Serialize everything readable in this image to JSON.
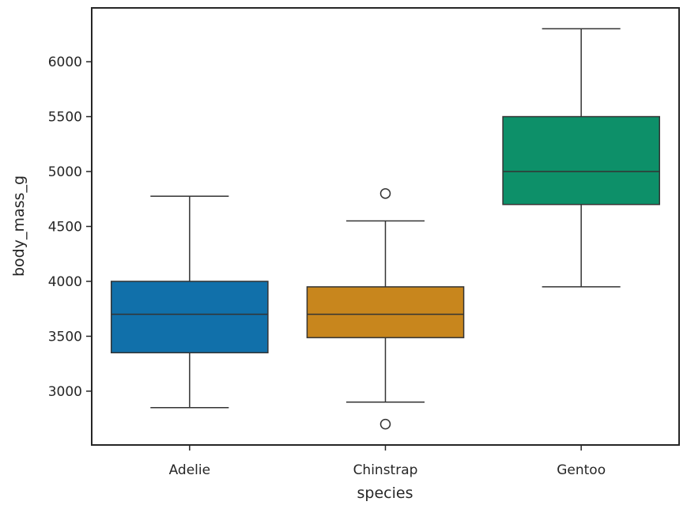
{
  "chart_data": {
    "type": "box",
    "xlabel": "species",
    "ylabel": "body_mass_g",
    "categories": [
      "Adelie",
      "Chinstrap",
      "Gentoo"
    ],
    "ylim": [
      2510,
      6490
    ],
    "yticks": [
      3000,
      3500,
      4000,
      4500,
      5000,
      5500,
      6000
    ],
    "grid": false,
    "series": [
      {
        "category": "Adelie",
        "color": "#1170aa",
        "whisker_low": 2850,
        "q1": 3350,
        "median": 3700,
        "q3": 4000,
        "whisker_high": 4775,
        "outliers": []
      },
      {
        "category": "Chinstrap",
        "color": "#c8861d",
        "whisker_low": 2900,
        "q1": 3487.5,
        "median": 3700,
        "q3": 3950,
        "whisker_high": 4550,
        "outliers": [
          2700,
          4800
        ]
      },
      {
        "category": "Gentoo",
        "color": "#0d9069",
        "whisker_low": 3950,
        "q1": 4700,
        "median": 5000,
        "q3": 5500,
        "whisker_high": 6300,
        "outliers": []
      }
    ]
  }
}
